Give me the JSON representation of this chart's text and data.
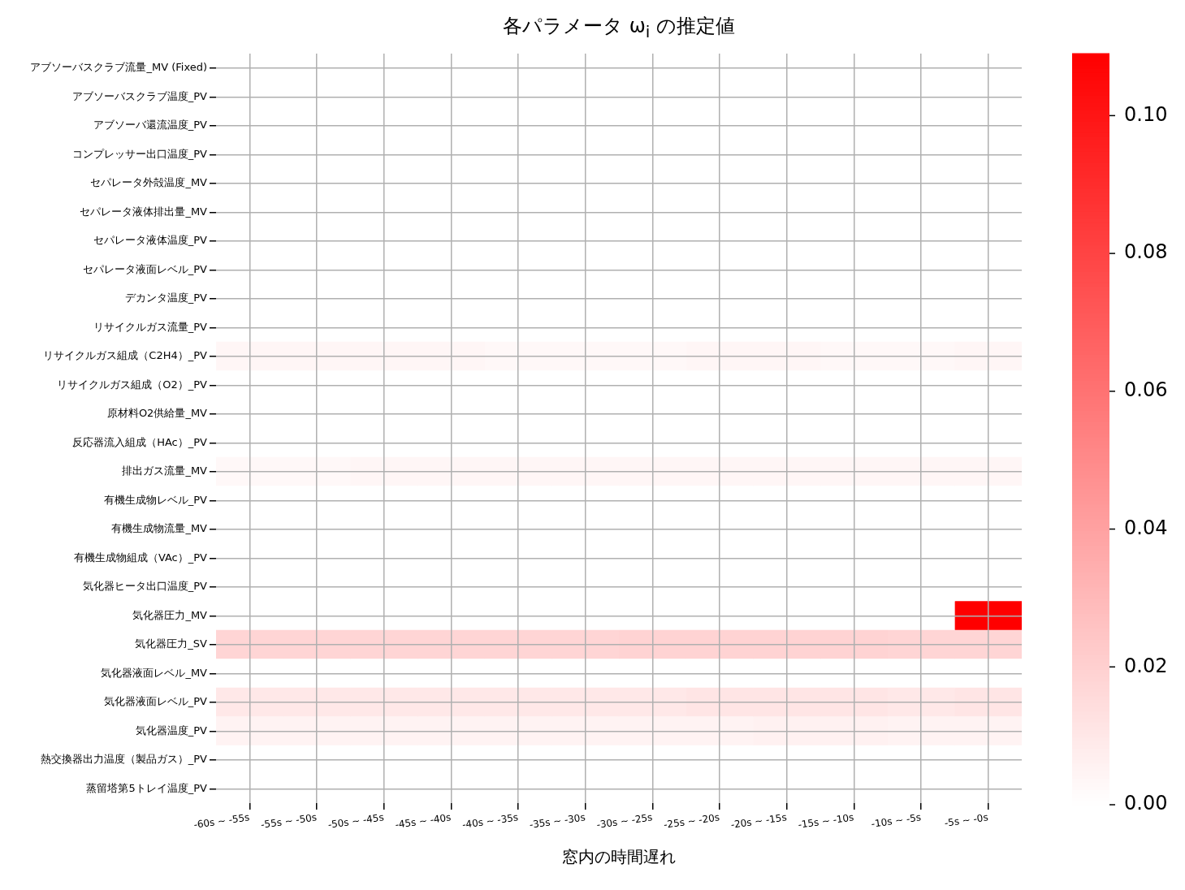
{
  "chart_data": {
    "type": "heatmap",
    "title": "各パラメータ ω$_{i}$ の推定値",
    "xlabel": "窓内の時間遅れ",
    "categories": [
      "-60s ~ -55s",
      "-55s ~ -50s",
      "-50s ~ -45s",
      "-45s ~ -40s",
      "-40s ~ -35s",
      "-35s ~ -30s",
      "-30s ~ -25s",
      "-25s ~ -20s",
      "-20s ~ -15s",
      "-15s ~ -10s",
      "-10s ~ -5s",
      "-5s ~ -0s"
    ],
    "y_categories": [
      "アブソーバスクラブ流量_MV (Fixed)",
      "アブソーバスクラブ温度_PV",
      "アブソーバ還流温度_PV",
      "コンプレッサー出口温度_PV",
      "セパレータ外殻温度_MV",
      "セパレータ液体排出量_MV",
      "セパレータ液体温度_PV",
      "セパレータ液面レベル_PV",
      "デカンタ温度_PV",
      "リサイクルガス流量_PV",
      "リサイクルガス組成（C2H4）_PV",
      "リサイクルガス組成（O2）_PV",
      "原材料O2供給量_MV",
      "反応器流入組成（HAc）_PV",
      "排出ガス流量_MV",
      "有機生成物レベル_PV",
      "有機生成物流量_MV",
      "有機生成物組成（VAc）_PV",
      "気化器ヒータ出口温度_PV",
      "気化器圧力_MV",
      "気化器圧力_SV",
      "気化器液面レベル_MV",
      "気化器液面レベル_PV",
      "気化器温度_PV",
      "熱交換器出力温度（製品ガス）_PV",
      "蒸留塔第5トレイ温度_PV"
    ],
    "cells": [
      [
        0,
        0,
        0,
        0,
        0,
        0,
        0,
        0,
        0,
        0,
        0,
        0
      ],
      [
        0,
        0,
        0,
        0,
        0,
        0,
        0,
        0,
        0,
        0,
        0,
        0
      ],
      [
        0,
        0,
        0,
        0,
        0,
        0,
        0,
        0,
        0,
        0,
        0,
        0
      ],
      [
        0,
        0,
        0,
        0,
        0,
        0,
        0,
        0,
        0,
        0,
        0,
        0
      ],
      [
        0,
        0,
        0,
        0,
        0,
        0,
        0,
        0,
        0,
        0,
        0,
        0
      ],
      [
        0,
        0,
        0,
        0,
        0,
        0,
        0,
        0,
        0,
        0,
        0,
        0
      ],
      [
        0,
        0,
        0,
        0,
        0,
        0,
        0,
        0,
        0,
        0,
        0,
        0
      ],
      [
        0,
        0,
        0,
        0,
        0,
        0,
        0,
        0,
        0,
        0,
        0,
        0
      ],
      [
        0,
        0,
        0,
        0,
        0,
        0,
        0,
        0,
        0,
        0,
        0,
        0
      ],
      [
        0,
        0,
        0,
        0,
        0,
        0,
        0,
        0,
        0,
        0,
        0,
        0
      ],
      [
        0.004,
        0.004,
        0.004,
        0.004,
        0.003,
        0.003,
        0.003,
        0.004,
        0.004,
        0.003,
        0.003,
        0.004
      ],
      [
        0,
        0,
        0,
        0,
        0,
        0,
        0,
        0,
        0,
        0,
        0,
        0
      ],
      [
        0,
        0,
        0,
        0,
        0,
        0,
        0,
        0,
        0,
        0,
        0,
        0
      ],
      [
        0,
        0,
        0,
        0,
        0,
        0,
        0,
        0,
        0,
        0,
        0,
        0
      ],
      [
        0.003,
        0.003,
        0.004,
        0.004,
        0.004,
        0.004,
        0.004,
        0.004,
        0.004,
        0.004,
        0.004,
        0.004
      ],
      [
        0,
        0,
        0,
        0,
        0,
        0,
        0,
        0,
        0,
        0,
        0,
        0
      ],
      [
        0,
        0,
        0,
        0,
        0,
        0,
        0,
        0,
        0,
        0,
        0,
        0
      ],
      [
        0,
        0,
        0,
        0,
        0,
        0,
        0,
        0,
        0,
        0,
        0,
        0
      ],
      [
        0,
        0,
        0,
        0,
        0,
        0,
        0,
        0,
        0,
        0,
        0,
        0
      ],
      [
        0,
        0,
        0,
        0,
        0,
        0,
        0,
        0,
        0,
        0,
        0,
        0.109
      ],
      [
        0.018,
        0.018,
        0.018,
        0.018,
        0.018,
        0.018,
        0.019,
        0.019,
        0.019,
        0.019,
        0.018,
        0.018
      ],
      [
        0,
        0,
        0,
        0,
        0,
        0,
        0,
        0,
        0,
        0,
        0,
        0
      ],
      [
        0.01,
        0.01,
        0.01,
        0.01,
        0.01,
        0.01,
        0.01,
        0.011,
        0.011,
        0.011,
        0.01,
        0.011
      ],
      [
        0.005,
        0.005,
        0.005,
        0.005,
        0.005,
        0.005,
        0.005,
        0.005,
        0.006,
        0.006,
        0.005,
        0.005
      ],
      [
        0,
        0,
        0,
        0,
        0,
        0,
        0,
        0,
        0,
        0,
        0,
        0
      ],
      [
        0,
        0,
        0,
        0,
        0,
        0,
        0,
        0,
        0,
        0,
        0,
        0
      ]
    ],
    "clim": [
      0,
      0.109
    ],
    "cticks": [
      {
        "value": 0,
        "label": "0.00"
      },
      {
        "value": 0.02,
        "label": "0.02"
      },
      {
        "value": 0.04,
        "label": "0.04"
      },
      {
        "value": 0.06,
        "label": "0.06"
      },
      {
        "value": 0.08,
        "label": "0.08"
      },
      {
        "value": 0.1,
        "label": "0.10"
      }
    ],
    "grid": true
  }
}
